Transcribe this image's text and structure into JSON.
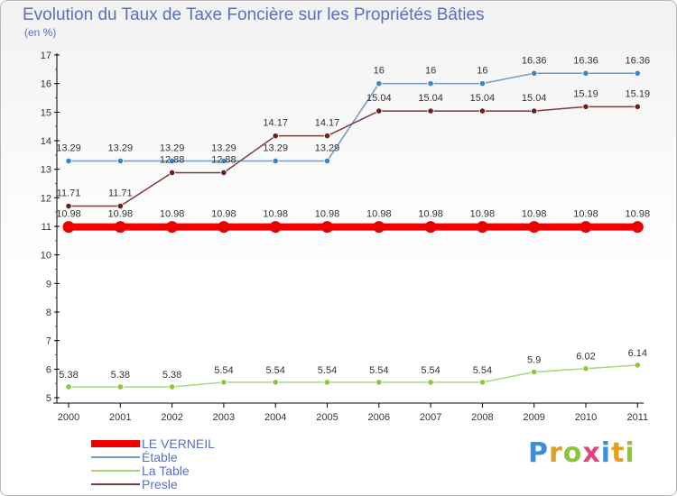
{
  "title": "Evolution du Taux de Taxe Foncière sur les Propriétés Bâties",
  "subtitle": "(en %)",
  "brand": {
    "text": "Proxiti",
    "colors": [
      "#3d8fd6",
      "#e0a020",
      "#8cc63f",
      "#e0457b",
      "#3d8fd6",
      "#e0a020",
      "#8cc63f"
    ]
  },
  "chart_data": {
    "type": "line",
    "x": [
      "2000",
      "2001",
      "2002",
      "2003",
      "2004",
      "2005",
      "2006",
      "2007",
      "2008",
      "2009",
      "2010",
      "2011"
    ],
    "ylim": [
      5,
      17
    ],
    "yticks": [
      "5",
      "6",
      "7",
      "8",
      "9",
      "10",
      "11",
      "12",
      "13",
      "14",
      "15",
      "16",
      "17"
    ],
    "grid": false,
    "legend_position": "bottom-left",
    "series": [
      {
        "name": "Étable",
        "color": "#6e9bc8",
        "marker": "#3d86c6",
        "values": [
          13.29,
          13.29,
          13.29,
          13.29,
          13.29,
          13.29,
          16,
          16,
          16,
          16.36,
          16.36,
          16.36
        ],
        "labels": [
          "13.29",
          "13.29",
          "13.29",
          "13.29",
          "13.29",
          "13.29",
          "16",
          "16",
          "16",
          "16.36",
          "16.36",
          "16.36"
        ]
      },
      {
        "name": "Presle",
        "color": "#7a3b3b",
        "marker": "#6b1f1f",
        "values": [
          11.71,
          11.71,
          12.88,
          12.88,
          14.17,
          14.17,
          15.04,
          15.04,
          15.04,
          15.04,
          15.19,
          15.19
        ],
        "labels": [
          "11.71",
          "11.71",
          "12.88",
          "12.88",
          "14.17",
          "14.17",
          "15.04",
          "15.04",
          "15.04",
          "15.04",
          "15.19",
          "15.19"
        ]
      },
      {
        "name": "La Table",
        "color": "#a8d878",
        "marker": "#8cc63f",
        "values": [
          5.38,
          5.38,
          5.38,
          5.54,
          5.54,
          5.54,
          5.54,
          5.54,
          5.54,
          5.9,
          6.02,
          6.14
        ],
        "labels": [
          "5.38",
          "5.38",
          "5.38",
          "5.54",
          "5.54",
          "5.54",
          "5.54",
          "5.54",
          "5.54",
          "5.9",
          "6.02",
          "6.14"
        ]
      },
      {
        "name": "LE VERNEIL",
        "color": "#ee0000",
        "marker": "#ee0000",
        "values": [
          10.98,
          10.98,
          10.98,
          10.98,
          10.98,
          10.98,
          10.98,
          10.98,
          10.98,
          10.98,
          10.98,
          10.98
        ],
        "labels": [
          "10.98",
          "10.98",
          "10.98",
          "10.98",
          "10.98",
          "10.98",
          "10.98",
          "10.98",
          "10.98",
          "10.98",
          "10.98",
          "10.98"
        ]
      }
    ],
    "legend": [
      "LE VERNEIL",
      "Étable",
      "La Table",
      "Presle"
    ]
  }
}
